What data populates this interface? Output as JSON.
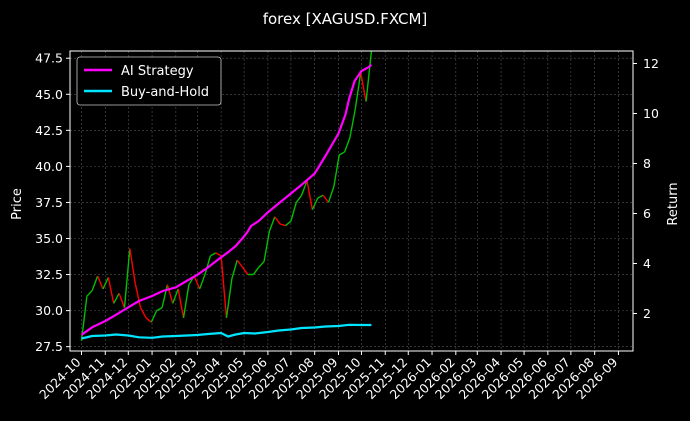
{
  "chart_data": {
    "type": "line",
    "title": "forex [XAGUSD.FXCM]",
    "xlabel": "",
    "ylabel": "Price",
    "y2label": "Return",
    "grid": true,
    "legend_position": "top-left",
    "ylim": [
      27.2,
      48.0
    ],
    "y2lim": [
      0.5,
      12.5
    ],
    "yticks": [
      27.5,
      30.0,
      32.5,
      35.0,
      37.5,
      40.0,
      42.5,
      45.0,
      47.5
    ],
    "y2ticks": [
      2,
      4,
      6,
      8,
      10,
      12
    ],
    "xticks": [
      "2024-10",
      "2024-11",
      "2024-12",
      "2025-01",
      "2025-02",
      "2025-03",
      "2025-04",
      "2025-05",
      "2025-06",
      "2025-07",
      "2025-08",
      "2025-09",
      "2025-10",
      "2025-11",
      "2025-12",
      "2026-01",
      "2026-02",
      "2026-03",
      "2026-04",
      "2026-05",
      "2026-06",
      "2026-07",
      "2026-08",
      "2026-09"
    ],
    "price_series": {
      "name": "XAGUSD",
      "up_color": "#00c000",
      "down_color": "#ff0000",
      "points": [
        [
          "2024-10-01",
          27.9
        ],
        [
          "2024-10-08",
          31.0
        ],
        [
          "2024-10-15",
          31.4
        ],
        [
          "2024-10-22",
          32.4
        ],
        [
          "2024-10-29",
          31.5
        ],
        [
          "2024-11-05",
          32.3
        ],
        [
          "2024-11-12",
          30.5
        ],
        [
          "2024-11-19",
          31.2
        ],
        [
          "2024-11-26",
          30.2
        ],
        [
          "2024-12-03",
          34.3
        ],
        [
          "2024-12-10",
          31.9
        ],
        [
          "2024-12-17",
          30.2
        ],
        [
          "2024-12-24",
          29.5
        ],
        [
          "2024-12-31",
          29.2
        ],
        [
          "2025-01-07",
          30.0
        ],
        [
          "2025-01-14",
          30.2
        ],
        [
          "2025-01-21",
          31.8
        ],
        [
          "2025-01-28",
          30.5
        ],
        [
          "2025-02-04",
          31.5
        ],
        [
          "2025-02-11",
          29.5
        ],
        [
          "2025-02-18",
          31.8
        ],
        [
          "2025-02-25",
          32.4
        ],
        [
          "2025-03-04",
          31.5
        ],
        [
          "2025-03-11",
          32.5
        ],
        [
          "2025-03-18",
          33.8
        ],
        [
          "2025-03-25",
          34.0
        ],
        [
          "2025-04-01",
          33.8
        ],
        [
          "2025-04-08",
          29.5
        ],
        [
          "2025-04-15",
          32.2
        ],
        [
          "2025-04-22",
          33.5
        ],
        [
          "2025-04-29",
          33.0
        ],
        [
          "2025-05-06",
          32.5
        ],
        [
          "2025-05-13",
          32.5
        ],
        [
          "2025-05-20",
          33.0
        ],
        [
          "2025-05-27",
          33.4
        ],
        [
          "2025-06-03",
          35.5
        ],
        [
          "2025-06-10",
          36.5
        ],
        [
          "2025-06-17",
          36.0
        ],
        [
          "2025-06-24",
          35.9
        ],
        [
          "2025-07-01",
          36.2
        ],
        [
          "2025-07-08",
          37.5
        ],
        [
          "2025-07-15",
          38.0
        ],
        [
          "2025-07-22",
          39.0
        ],
        [
          "2025-07-29",
          37.0
        ],
        [
          "2025-08-05",
          37.8
        ],
        [
          "2025-08-12",
          38.0
        ],
        [
          "2025-08-19",
          37.5
        ],
        [
          "2025-08-26",
          38.6
        ],
        [
          "2025-09-02",
          40.8
        ],
        [
          "2025-09-09",
          41.0
        ],
        [
          "2025-09-16",
          42.0
        ],
        [
          "2025-09-23",
          44.0
        ],
        [
          "2025-09-30",
          46.5
        ],
        [
          "2025-10-07",
          44.5
        ],
        [
          "2025-10-14",
          48.0
        ]
      ]
    },
    "series": [
      {
        "name": "AI Strategy",
        "color": "#ff00ff",
        "points": [
          [
            "2024-10-01",
            1.15
          ],
          [
            "2024-10-15",
            1.45
          ],
          [
            "2024-11-01",
            1.7
          ],
          [
            "2024-11-15",
            1.95
          ],
          [
            "2024-12-01",
            2.25
          ],
          [
            "2024-12-15",
            2.5
          ],
          [
            "2025-01-01",
            2.7
          ],
          [
            "2025-01-15",
            2.9
          ],
          [
            "2025-02-01",
            3.05
          ],
          [
            "2025-02-15",
            3.3
          ],
          [
            "2025-03-01",
            3.55
          ],
          [
            "2025-03-15",
            3.85
          ],
          [
            "2025-04-01",
            4.25
          ],
          [
            "2025-04-10",
            4.45
          ],
          [
            "2025-04-20",
            4.7
          ],
          [
            "2025-04-30",
            5.05
          ],
          [
            "2025-05-05",
            5.25
          ],
          [
            "2025-05-10",
            5.5
          ],
          [
            "2025-05-20",
            5.7
          ],
          [
            "2025-06-01",
            6.05
          ],
          [
            "2025-06-15",
            6.4
          ],
          [
            "2025-07-01",
            6.8
          ],
          [
            "2025-07-15",
            7.15
          ],
          [
            "2025-08-01",
            7.6
          ],
          [
            "2025-08-15",
            8.3
          ],
          [
            "2025-09-01",
            9.2
          ],
          [
            "2025-09-10",
            9.95
          ],
          [
            "2025-09-15",
            10.6
          ],
          [
            "2025-09-22",
            11.3
          ],
          [
            "2025-10-01",
            11.7
          ],
          [
            "2025-10-10",
            11.85
          ],
          [
            "2025-10-14",
            11.95
          ]
        ]
      },
      {
        "name": "Buy-and-Hold",
        "color": "#00e5ff",
        "points": [
          [
            "2024-10-01",
            1.0
          ],
          [
            "2024-10-15",
            1.1
          ],
          [
            "2024-11-01",
            1.12
          ],
          [
            "2024-11-15",
            1.16
          ],
          [
            "2024-12-01",
            1.12
          ],
          [
            "2024-12-15",
            1.05
          ],
          [
            "2025-01-01",
            1.03
          ],
          [
            "2025-01-15",
            1.08
          ],
          [
            "2025-02-01",
            1.1
          ],
          [
            "2025-02-15",
            1.12
          ],
          [
            "2025-03-01",
            1.14
          ],
          [
            "2025-03-15",
            1.18
          ],
          [
            "2025-04-01",
            1.22
          ],
          [
            "2025-04-10",
            1.08
          ],
          [
            "2025-04-20",
            1.16
          ],
          [
            "2025-05-01",
            1.22
          ],
          [
            "2025-05-15",
            1.2
          ],
          [
            "2025-06-01",
            1.26
          ],
          [
            "2025-06-15",
            1.32
          ],
          [
            "2025-07-01",
            1.36
          ],
          [
            "2025-07-15",
            1.42
          ],
          [
            "2025-08-01",
            1.44
          ],
          [
            "2025-08-15",
            1.48
          ],
          [
            "2025-09-01",
            1.5
          ],
          [
            "2025-09-15",
            1.55
          ],
          [
            "2025-10-01",
            1.54
          ],
          [
            "2025-10-14",
            1.54
          ]
        ]
      }
    ]
  }
}
